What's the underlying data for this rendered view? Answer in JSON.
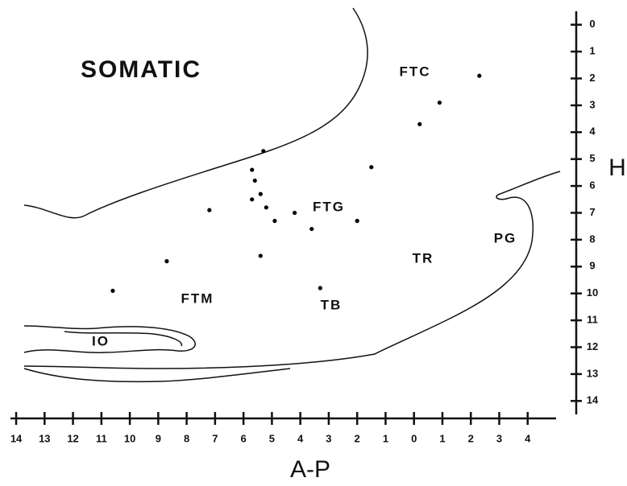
{
  "chart_data": {
    "type": "scatter",
    "x_label": "A-P",
    "y_label": "H",
    "annotations": [
      "SOMATIC",
      "FTC",
      "FTG",
      "PG",
      "TR",
      "FTM",
      "TB",
      "IO"
    ],
    "x": [
      -2.3,
      -0.9,
      -0.2,
      1.5,
      5.3,
      5.7,
      5.6,
      5.4,
      5.7,
      5.2,
      4.9,
      4.2,
      7.2,
      2.0,
      3.6,
      5.4,
      8.7,
      10.6,
      3.3
    ],
    "values": [
      1.9,
      2.9,
      3.7,
      5.3,
      4.7,
      5.4,
      5.8,
      6.3,
      6.5,
      6.8,
      7.3,
      7.0,
      6.9,
      7.3,
      7.6,
      8.6,
      8.8,
      9.9,
      9.8
    ],
    "color": "#000000",
    "xlim": [
      14.2,
      -5
    ],
    "xticks": [
      14,
      13,
      12,
      11,
      10,
      9,
      8,
      7,
      6,
      5,
      4,
      3,
      2,
      1,
      0,
      {
        "value": -1,
        "label": "1"
      },
      {
        "value": -2,
        "label": "2"
      },
      {
        "value": -3,
        "label": "3"
      },
      {
        "value": -4,
        "label": "4"
      }
    ],
    "ylim": [
      -0.5,
      14.5
    ],
    "yticks": [
      0,
      1,
      2,
      3,
      4,
      5,
      6,
      7,
      8,
      9,
      10,
      11,
      12,
      13,
      14
    ],
    "grid": false
  }
}
